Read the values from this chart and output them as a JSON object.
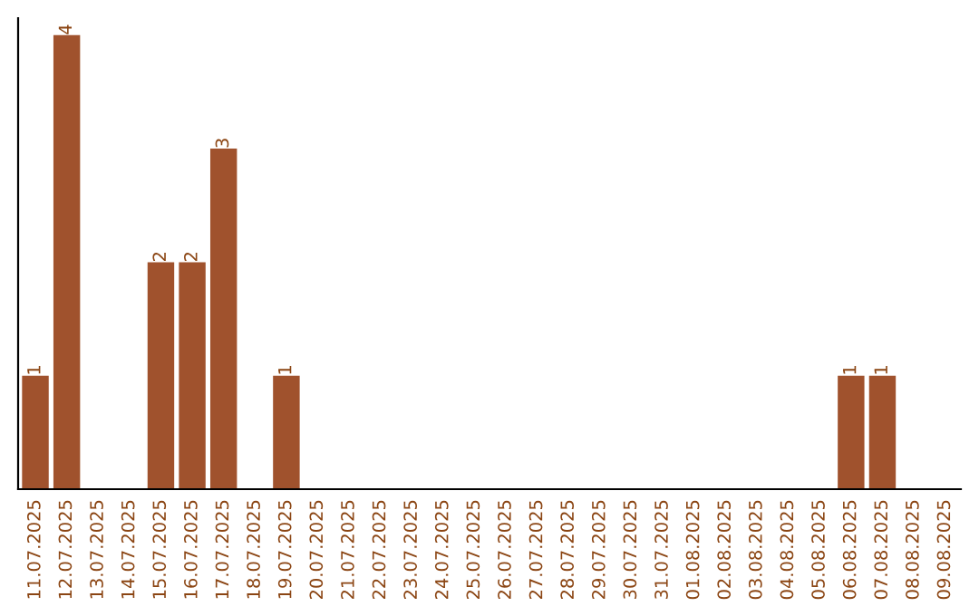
{
  "chart_data": {
    "type": "bar",
    "categories": [
      "11.07.2025",
      "12.07.2025",
      "13.07.2025",
      "14.07.2025",
      "15.07.2025",
      "16.07.2025",
      "17.07.2025",
      "18.07.2025",
      "19.07.2025",
      "20.07.2025",
      "21.07.2025",
      "22.07.2025",
      "23.07.2025",
      "24.07.2025",
      "25.07.2025",
      "26.07.2025",
      "27.07.2025",
      "28.07.2025",
      "29.07.2025",
      "30.07.2025",
      "31.07.2025",
      "01.08.2025",
      "02.08.2025",
      "03.08.2025",
      "04.08.2025",
      "05.08.2025",
      "06.08.2025",
      "07.08.2025",
      "08.08.2025",
      "09.08.2025"
    ],
    "values": [
      1,
      4,
      0,
      0,
      2,
      2,
      3,
      0,
      1,
      0,
      0,
      0,
      0,
      0,
      0,
      0,
      0,
      0,
      0,
      0,
      0,
      0,
      0,
      0,
      0,
      0,
      1,
      1,
      0,
      0
    ],
    "value_labels": [
      "1",
      "4",
      null,
      null,
      "2",
      "2",
      "3",
      null,
      "1",
      null,
      null,
      null,
      null,
      null,
      null,
      null,
      null,
      null,
      null,
      null,
      null,
      null,
      null,
      null,
      null,
      null,
      "1",
      "1",
      null,
      null
    ],
    "color": "#a0522d",
    "ylim": [
      0,
      4.15
    ],
    "tick_labels": "x",
    "grid": false
  }
}
